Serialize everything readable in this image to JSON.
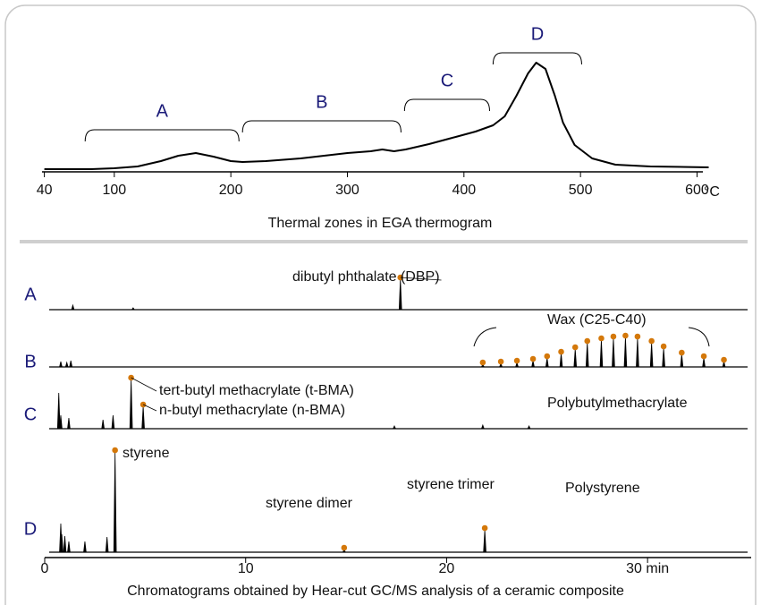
{
  "chart_data": [
    {
      "type": "line",
      "xlabel": "Thermal zones in EGA thermogram",
      "x_unit": "°C",
      "x": [
        40,
        80,
        100,
        120,
        140,
        155,
        170,
        185,
        200,
        210,
        230,
        260,
        280,
        300,
        320,
        330,
        340,
        350,
        370,
        390,
        410,
        425,
        435,
        445,
        455,
        462,
        470,
        478,
        485,
        495,
        510,
        530,
        560,
        610
      ],
      "values": [
        3,
        3,
        4,
        6,
        12,
        18,
        21,
        17,
        12,
        11,
        12,
        15,
        18,
        21,
        23,
        25,
        23,
        25,
        31,
        38,
        45,
        52,
        62,
        85,
        110,
        122,
        115,
        85,
        55,
        30,
        15,
        8,
        6,
        5
      ],
      "color": "#000000",
      "xlim": [
        38,
        605
      ],
      "ylim": [
        0,
        130
      ],
      "xticks": [
        40,
        100,
        200,
        300,
        400,
        500,
        600
      ],
      "zones": [
        {
          "label": "A",
          "range": [
            75,
            207
          ]
        },
        {
          "label": "B",
          "range": [
            210,
            346
          ]
        },
        {
          "label": "C",
          "range": [
            349,
            422
          ]
        },
        {
          "label": "D",
          "range": [
            425,
            501
          ]
        }
      ]
    },
    {
      "type": "chromatogram",
      "xlabel": "Chromatograms obtained by Hear-cut GC/MS analysis of a ceramic composite",
      "xlim": [
        0,
        35
      ],
      "xticks": [
        0,
        10,
        20,
        {
          "value": 30,
          "label": "30 min"
        }
      ],
      "marker_color": "#d4780a",
      "series": [
        {
          "name": "A",
          "x": [
            1.4,
            4.4,
            17.7
          ],
          "values": [
            5,
            2,
            34
          ]
        },
        {
          "name": "B",
          "x": [
            0.8,
            1.1,
            1.3,
            21.8,
            22.7,
            23.5,
            24.3,
            25.0,
            25.7,
            26.4,
            27.0,
            27.7,
            28.3,
            28.9,
            29.5,
            30.2,
            30.8,
            31.7,
            32.8,
            33.8
          ],
          "values": [
            6,
            5,
            7,
            3,
            4,
            5,
            7,
            10,
            15,
            20,
            27,
            30,
            32,
            33,
            32,
            27,
            21,
            14,
            10,
            6
          ]
        },
        {
          "name": "C",
          "x": [
            0.7,
            0.8,
            1.2,
            2.9,
            3.4,
            4.3,
            4.9,
            17.4,
            21.8,
            24.1
          ],
          "values": [
            40,
            15,
            12,
            10,
            15,
            55,
            25,
            3,
            4,
            3
          ]
        },
        {
          "name": "D",
          "x": [
            0.8,
            0.85,
            1.0,
            1.2,
            2.0,
            3.1,
            3.5,
            14.9,
            21.9
          ],
          "values": [
            32,
            20,
            18,
            12,
            12,
            17,
            112,
            3,
            25
          ]
        }
      ],
      "annotations": [
        "dibutyl phthalate (DBP)",
        "tert-butyl methacrylate (t-BMA)",
        "n-butyl methacrylate (n-BMA)",
        "styrene",
        "styrene dimer",
        "styrene trimer"
      ],
      "region_labels": [
        "Wax (C25-C40)",
        "Polybutylmethacrylate",
        "Polystyrene"
      ]
    }
  ]
}
